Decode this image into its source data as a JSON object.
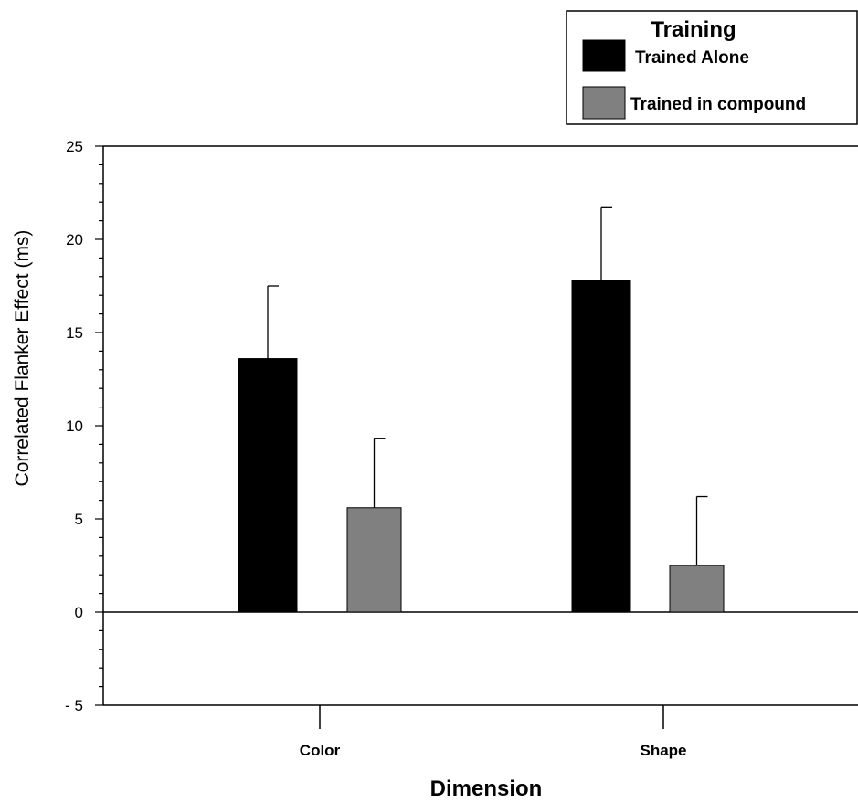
{
  "chart_data": {
    "type": "bar",
    "categories": [
      "Color",
      "Shape"
    ],
    "series": [
      {
        "name": "Trained Alone",
        "color": "#000000",
        "values": [
          13.6,
          17.8
        ],
        "error": [
          3.9,
          3.9
        ]
      },
      {
        "name": "Trained in compound",
        "color": "#808080",
        "values": [
          5.6,
          2.5
        ],
        "error": [
          3.7,
          3.7
        ]
      }
    ],
    "title": "",
    "xlabel": "Dimension",
    "ylabel": "Correlated Flanker Effect (ms)",
    "ylim": [
      -5,
      25
    ],
    "yticks": [
      "25",
      "20",
      "15",
      "10",
      "5",
      "0",
      "- 5"
    ],
    "legend": {
      "title": "Training",
      "position": "top-right"
    },
    "grid": false
  }
}
